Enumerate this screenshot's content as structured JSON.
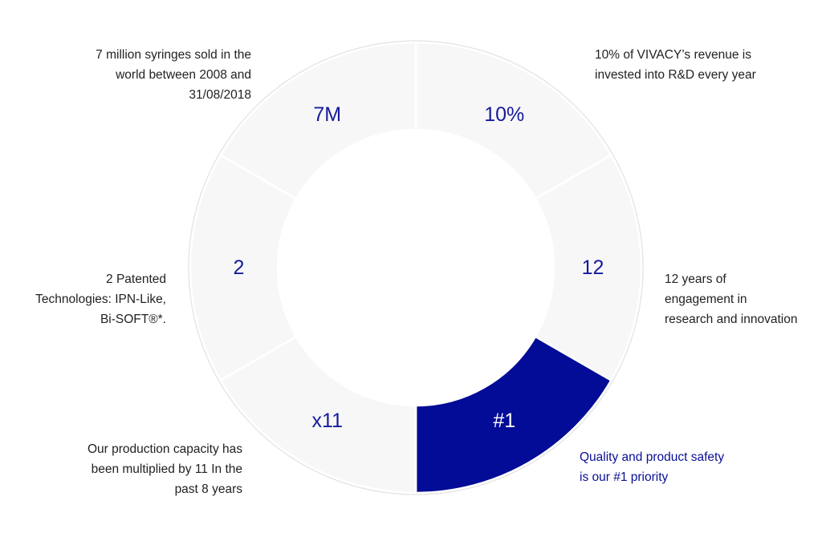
{
  "colors": {
    "segment_fill": "#f7f7f7",
    "segment_active_fill": "#020c96",
    "separator": "#ffffff",
    "outline": "#e6e6e6",
    "value_text": "#161a9c",
    "value_active_text": "#ffffff",
    "caption_text": "#222222",
    "caption_accent_text": "#0a0f96"
  },
  "segments": [
    {
      "id": "rd-investment",
      "value": "10%",
      "caption_lines": [
        "10% of VIVACY’s revenue is",
        "invested into R&D every year"
      ],
      "active": false
    },
    {
      "id": "years-engagement",
      "value": "12",
      "caption_lines": [
        "12 years of",
        "engagement in",
        "research and innovation"
      ],
      "active": false
    },
    {
      "id": "quality-priority",
      "value": "#1",
      "caption_lines": [
        "Quality and product safety",
        "is our #1 priority"
      ],
      "active": true
    },
    {
      "id": "production-capacity",
      "value": "x11",
      "caption_lines": [
        "Our production capacity has",
        "been multiplied by 11 In the",
        "past 8 years"
      ],
      "active": false
    },
    {
      "id": "patented-technologies",
      "value": "2",
      "caption_lines": [
        "2 Patented",
        "Technologies: IPN-Like,",
        "Bi-SOFT®*."
      ],
      "active": false
    },
    {
      "id": "syringes-sold",
      "value": "7M",
      "caption_lines": [
        "7 million syringes sold in the",
        "world between 2008 and",
        "31/08/2018"
      ],
      "active": false
    }
  ]
}
